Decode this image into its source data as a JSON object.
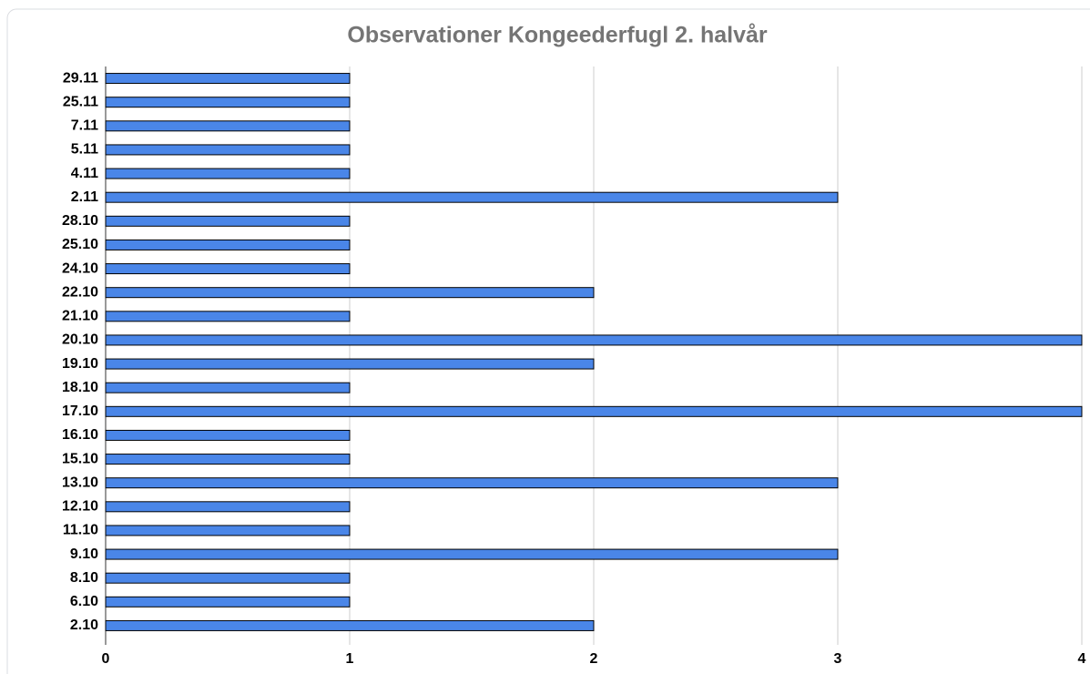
{
  "chart_data": {
    "type": "hbar",
    "title": "Observationer Kongeederfugl 2. halvår",
    "categories": [
      "29.11",
      "25.11",
      "7.11",
      "5.11",
      "4.11",
      "2.11",
      "28.10",
      "25.10",
      "24.10",
      "22.10",
      "21.10",
      "20.10",
      "19.10",
      "18.10",
      "17.10",
      "16.10",
      "15.10",
      "13.10",
      "12.10",
      "11.10",
      "9.10",
      "8.10",
      "6.10",
      "2.10"
    ],
    "values": [
      1,
      1,
      1,
      1,
      1,
      3,
      1,
      1,
      1,
      2,
      1,
      4,
      2,
      1,
      4,
      1,
      1,
      3,
      1,
      1,
      3,
      1,
      1,
      2
    ],
    "color": "#4a86e8",
    "xlim": [
      0,
      4
    ],
    "xticks": [
      0,
      1,
      2,
      3,
      4
    ],
    "grid": true
  }
}
